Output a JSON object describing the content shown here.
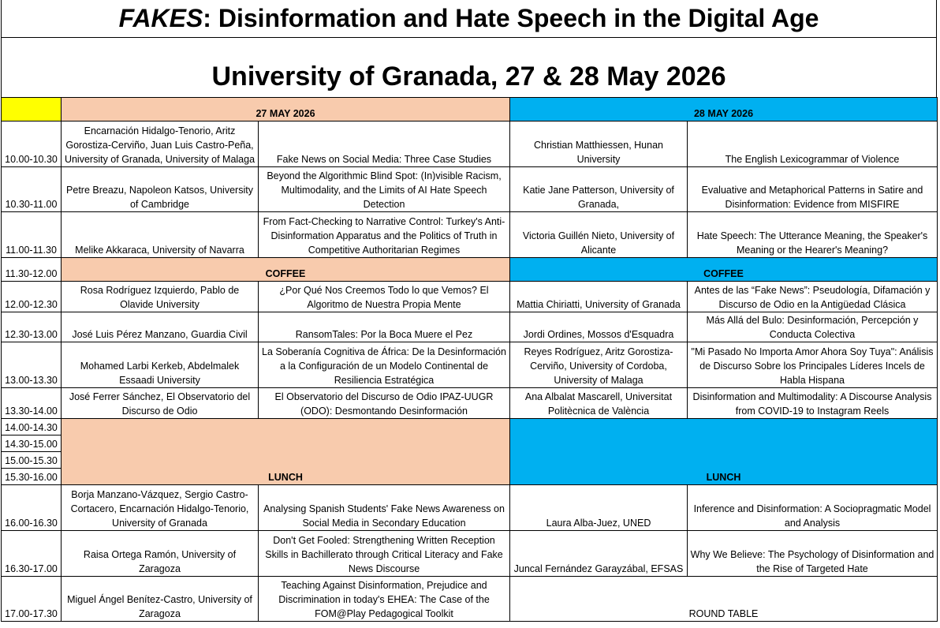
{
  "title": {
    "em": "FAKES",
    "rest": " : Disinformation and Hate Speech in the Digital Age"
  },
  "subtitle": "University of Granada, 27 & 28 May 2026",
  "days": [
    "27 MAY 2026",
    "28 MAY 2026"
  ],
  "colors": {
    "day1": "#f8cbad",
    "day2": "#00b0f0",
    "corner": "#ffff00"
  },
  "sessions": [
    {
      "time": "10.00-10.30",
      "d1_speaker": "Encarnación Hidalgo-Tenorio, Aritz Gorostiza-Cerviño, Juan Luis Castro-Peña, University of Granada, University of Malaga",
      "d1_title": "Fake News on Social Media: Three Case Studies",
      "d2_speaker": "Christian Matthiessen, Hunan University",
      "d2_title": "The English Lexicogrammar of Violence"
    },
    {
      "time": "10.30-11.00",
      "d1_speaker": "Petre Breazu, Napoleon Katsos, University of Cambridge",
      "d1_title": "Beyond the Algorithmic Blind Spot: (In)visible Racism, Multimodality, and the Limits of AI Hate Speech Detection",
      "d2_speaker": "Katie Jane Patterson, University of Granada,",
      "d2_title": "Evaluative and Metaphorical Patterns in Satire and Disinformation: Evidence from MISFIRE"
    },
    {
      "time": "11.00-11.30",
      "d1_speaker": "Melike Akkaraca, University of Navarra",
      "d1_title": "From Fact-Checking to Narrative Control: Turkey's Anti-Disinformation Apparatus and the Politics of Truth in Competitive Authoritarian Regimes",
      "d2_speaker": "Victoria Guillén Nieto, University of Alicante",
      "d2_title": "Hate Speech: The Utterance Meaning, the Speaker's Meaning or the Hearer's Meaning?"
    }
  ],
  "coffee": {
    "time": "11.30-12.00",
    "label": "COFFEE"
  },
  "sessions2": [
    {
      "time": "12.00-12.30",
      "d1_speaker": "Rosa Rodríguez Izquierdo, Pablo de Olavide University",
      "d1_title": "¿Por Qué Nos Creemos Todo lo que Vemos? El Algoritmo de Nuestra Propia Mente",
      "d2_speaker": "Mattia Chiriatti, University of Granada",
      "d2_title": "Antes de las “Fake News”: Pseudología, Difamación y Discurso de Odio en la Antigüedad Clásica"
    },
    {
      "time": "12.30-13.00",
      "d1_speaker": "José Luis Pérez Manzano, Guardia Civil",
      "d1_title": "RansomTales: Por la Boca Muere el Pez",
      "d2_speaker": "Jordi Ordines, Mossos d'Esquadra",
      "d2_title": "Más Allá del Bulo: Desinformación, Percepción y Conducta Colectiva"
    },
    {
      "time": "13.00-13.30",
      "d1_speaker": "Mohamed Larbi Kerkeb, Abdelmalek Essaadi University",
      "d1_title": "La Soberanía Cognitiva de África: De la Desinformación a la Configuración de un Modelo Continental de Resiliencia Estratégica",
      "d2_speaker": "Reyes Rodríguez, Aritz Gorostiza-Cerviño, University of Cordoba, University of Malaga",
      "d2_title": "\"Mi Pasado No Importa Amor Ahora Soy Tuya\": Análisis de Discurso Sobre los Principales Líderes Incels de Habla Hispana"
    },
    {
      "time": "13.30-14.00",
      "d1_speaker": "José Ferrer Sánchez, El Observatorio del Discurso de Odio",
      "d1_title": "El Observatorio del Discurso de Odio IPAZ-UUGR (ODO): Desmontando Desinformación",
      "d2_speaker": "Ana Albalat Mascarell, Universitat Politècnica de València",
      "d2_title": "Disinformation and Multimodality: A Discourse Analysis from COVID-19 to Instagram Reels"
    }
  ],
  "lunch": {
    "times": [
      "14.00-14.30",
      "14.30-15.00",
      "15.00-15.30",
      "15.30-16.00"
    ],
    "label": "LUNCH"
  },
  "sessions3": [
    {
      "time": "16.00-16.30",
      "d1_speaker": "Borja Manzano-Vázquez, Sergio Castro-Cortacero, Encarnación Hidalgo-Tenorio, University of Granada",
      "d1_title": "Analysing Spanish Students' Fake News Awareness on Social Media in Secondary Education",
      "d2_speaker": "Laura Alba-Juez, UNED",
      "d2_title": "Inference and Disinformation: A Sociopragmatic Model and Analysis"
    },
    {
      "time": "16.30-17.00",
      "d1_speaker": "Raisa Ortega Ramón, University of Zaragoza",
      "d1_title": "Don't Get Fooled: Strengthening Written Reception Skills in Bachillerato through Critical Literacy and Fake News Discourse",
      "d2_speaker": "Juncal Fernández Garayzábal, EFSAS",
      "d2_title": "Why We Believe: The Psychology of Disinformation and the Rise of Targeted Hate"
    }
  ],
  "last": {
    "time": "17.00-17.30",
    "d1_speaker": "Miguel Ángel Benítez-Castro, University of Zaragoza",
    "d1_title": "Teaching Against Disinformation, Prejudice and Discrimination in today's EHEA: The Case of the FOM@Play Pedagogical Toolkit",
    "d2_label": "ROUND TABLE"
  }
}
